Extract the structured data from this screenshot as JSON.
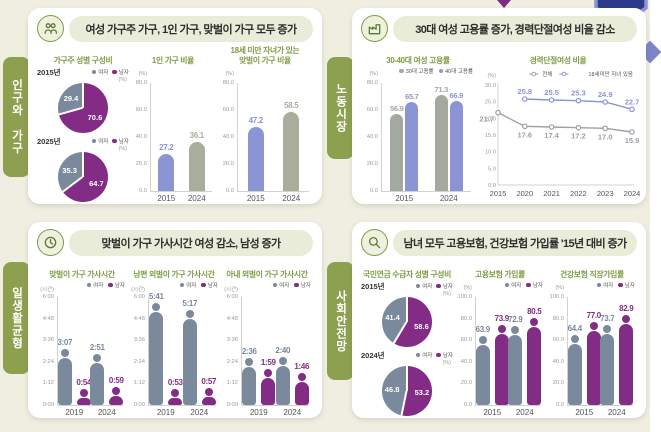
{
  "colors": {
    "purple": "#822c85",
    "slate": "#7b899d",
    "periwinkle": "#8c95d4",
    "graygreen": "#a9ae9c",
    "warmgray": "#a3a8a1",
    "linegray": "#9ba1a6",
    "title_green": "#7d9b44",
    "tab_green": "#8da050",
    "pill_bg": "#e9ecd9",
    "page_bg": "#efeee1",
    "deco_navy": "#2c3a8c",
    "deco_blue": "#7c85c8"
  },
  "panels": [
    {
      "tab": "인구와 가구",
      "icon": "people-icon",
      "title": "여성 가구주 가구, 1인 가구, 맞벌이 가구 모두 증가"
    },
    {
      "tab": "노동시장",
      "icon": "factory-icon",
      "title": "30대 여성 고용률 증가, 경력단절여성 비율 감소"
    },
    {
      "tab": "일생활균형",
      "icon": "clock-icon",
      "title": "맞벌이 가구 가사시간 여성 감소, 남성 증가"
    },
    {
      "tab": "사회안전망",
      "icon": "magnifier-icon",
      "title": "남녀 모두 고용보험, 건강보험 가입률 '15년 대비 증가"
    }
  ],
  "chart_data": [
    {
      "id": "household-head-gender-pie",
      "type": "pie",
      "panel": "인구와 가구",
      "title": "가구주 성별 구성비",
      "unit": "(%)",
      "legend": [
        {
          "name": "여자",
          "color": "slate"
        },
        {
          "name": "남자",
          "color": "purple"
        }
      ],
      "pies": [
        {
          "label": "2015년",
          "slices": [
            {
              "name": "남자",
              "value": "70.6",
              "color": "purple"
            },
            {
              "name": "여자",
              "value": "29.4",
              "color": "slate"
            }
          ]
        },
        {
          "label": "2025년",
          "slices": [
            {
              "name": "남자",
              "value": "64.7",
              "color": "purple"
            },
            {
              "name": "여자",
              "value": "35.3",
              "color": "slate"
            }
          ]
        }
      ]
    },
    {
      "id": "single-person-household-bar",
      "type": "bar",
      "panel": "인구와 가구",
      "title": "1인 가구 비율",
      "unit": "(%)",
      "categories": [
        "2015",
        "2024"
      ],
      "values": [
        "27.2",
        "36.1"
      ],
      "bar_colors": [
        "periwinkle",
        "graygreen"
      ],
      "ylim": [
        0,
        80
      ],
      "yticks": [
        "80.0",
        "60.0",
        "40.0",
        "20.0",
        "0.0"
      ],
      "h": 138
    },
    {
      "id": "dual-income-children-bar",
      "type": "bar",
      "panel": "인구와 가구",
      "title": "18세 미만 자녀가 있는\n맞벌이 가구 비율",
      "unit": "(%)",
      "categories": [
        "2015",
        "2024"
      ],
      "values": [
        "47.2",
        "58.5"
      ],
      "bar_colors": [
        "periwinkle",
        "graygreen"
      ],
      "ylim": [
        0,
        80
      ],
      "yticks": [
        "80.0",
        "60.0",
        "40.0",
        "20.0",
        "0.0"
      ],
      "h": 138
    },
    {
      "id": "women-employment-rate-bar",
      "type": "grouped-bar",
      "panel": "노동시장",
      "title": "30-40대 여성 고용률",
      "unit": "(%)",
      "categories": [
        "2015",
        "2024"
      ],
      "series": [
        {
          "name": "30대 고용률",
          "color": "warmgray",
          "values": [
            "56.9",
            "71.3"
          ]
        },
        {
          "name": "40대 고용률",
          "color": "periwinkle",
          "values": [
            "65.7",
            "66.9"
          ]
        }
      ],
      "ylim": [
        0,
        80
      ],
      "yticks": [
        "80.0",
        "60.0",
        "40.0",
        "20.0",
        "0.0"
      ],
      "h": 138
    },
    {
      "id": "career-break-women-line",
      "type": "line",
      "panel": "노동시장",
      "title": "경력단절여성 비율",
      "unit": "(%)",
      "x": [
        "2015",
        "2020",
        "2021",
        "2022",
        "2023",
        "2024"
      ],
      "series": [
        {
          "name": "전체",
          "color": "linegray",
          "label_pos": "below",
          "values": [
            "21.7",
            "17.6",
            "17.4",
            "17.2",
            "17.0",
            "15.9"
          ]
        },
        {
          "name": "18세미만 자녀 있음",
          "color": "periwinkle",
          "label_pos": "above",
          "values": [
            null,
            "25.8",
            "25.5",
            "25.3",
            "24.9",
            "22.7"
          ]
        }
      ],
      "ylim": [
        0,
        30
      ],
      "yticks": [
        "30.0",
        "25.0",
        "20.0",
        "15.0",
        "10.0",
        "5.0",
        "0.0"
      ],
      "w": 158,
      "h": 138
    },
    {
      "id": "housework-dual-income",
      "type": "person-bar",
      "panel": "일생활균형",
      "title": "맞벌이 가구 가사시간",
      "unit": "(시간)",
      "value_kind": "time",
      "categories": [
        "2019",
        "2024"
      ],
      "series": [
        {
          "name": "여자",
          "color": "slate",
          "values": [
            "3:07",
            "2:51"
          ]
        },
        {
          "name": "남자",
          "color": "purple",
          "values": [
            "0:54",
            "0:59"
          ]
        }
      ],
      "ylim": [
        0,
        360
      ],
      "yticks": [
        "6:00",
        "4:48",
        "3:36",
        "2:24",
        "1:12",
        "0:00"
      ],
      "h": 138
    },
    {
      "id": "housework-husband-earner",
      "type": "person-bar",
      "panel": "일생활균형",
      "title": "남편 외벌이 가구 가사시간",
      "unit": "(시간)",
      "value_kind": "time",
      "categories": [
        "2019",
        "2024"
      ],
      "series": [
        {
          "name": "여자",
          "color": "slate",
          "values": [
            "5:41",
            "5:17"
          ]
        },
        {
          "name": "남자",
          "color": "purple",
          "values": [
            "0:53",
            "0:57"
          ]
        }
      ],
      "ylim": [
        0,
        360
      ],
      "yticks": [
        "6:00",
        "4:48",
        "3:36",
        "2:24",
        "1:12",
        "0:00"
      ],
      "h": 138
    },
    {
      "id": "housework-wife-earner",
      "type": "person-bar",
      "panel": "일생활균형",
      "title": "아내 외벌이 가구 가사시간",
      "unit": "(시간)",
      "value_kind": "time",
      "categories": [
        "2019",
        "2024"
      ],
      "series": [
        {
          "name": "여자",
          "color": "slate",
          "values": [
            "2:36",
            "2:40"
          ]
        },
        {
          "name": "남자",
          "color": "purple",
          "values": [
            "1:59",
            "1:46"
          ]
        }
      ],
      "ylim": [
        0,
        360
      ],
      "yticks": [
        "6:00",
        "4:48",
        "3:36",
        "2:24",
        "1:12",
        "0:00"
      ],
      "h": 138
    },
    {
      "id": "pension-recipients-pie",
      "type": "pie",
      "panel": "사회안전망",
      "title": "국민연금 수급자 성별 구성비",
      "unit": "(%)",
      "legend": [
        {
          "name": "여자",
          "color": "slate"
        },
        {
          "name": "남자",
          "color": "purple"
        }
      ],
      "pies": [
        {
          "label": "2015년",
          "slices": [
            {
              "name": "남자",
              "value": "58.6",
              "color": "purple"
            },
            {
              "name": "여자",
              "value": "41.4",
              "color": "slate"
            }
          ]
        },
        {
          "label": "2024년",
          "slices": [
            {
              "name": "남자",
              "value": "53.2",
              "color": "purple"
            },
            {
              "name": "여자",
              "value": "46.8",
              "color": "slate"
            }
          ]
        }
      ]
    },
    {
      "id": "employment-insurance-person",
      "type": "person-bar",
      "panel": "사회안전망",
      "title": "고용보험 가입률",
      "unit": "(%)",
      "categories": [
        "2015",
        "2024"
      ],
      "series": [
        {
          "name": "여자",
          "color": "slate",
          "values": [
            "63.9",
            "72.9"
          ]
        },
        {
          "name": "남자",
          "color": "purple",
          "values": [
            "73.9",
            "80.5"
          ]
        }
      ],
      "ylim": [
        0,
        100
      ],
      "yticks": [
        "100.0",
        "80.0",
        "60.0",
        "40.0",
        "20.0",
        "0.0"
      ],
      "h": 138
    },
    {
      "id": "health-insurance-person",
      "type": "person-bar",
      "panel": "사회안전망",
      "title": "건강보험 직장가입률",
      "unit": "(%)",
      "categories": [
        "2015",
        "2024"
      ],
      "series": [
        {
          "name": "여자",
          "color": "slate",
          "values": [
            "64.4",
            "73.7"
          ]
        },
        {
          "name": "남자",
          "color": "purple",
          "values": [
            "77.0",
            "82.9"
          ]
        }
      ],
      "ylim": [
        0,
        100
      ],
      "yticks": [
        "100.0",
        "80.0",
        "60.0",
        "40.0",
        "20.0",
        "0.0"
      ],
      "h": 138
    }
  ]
}
